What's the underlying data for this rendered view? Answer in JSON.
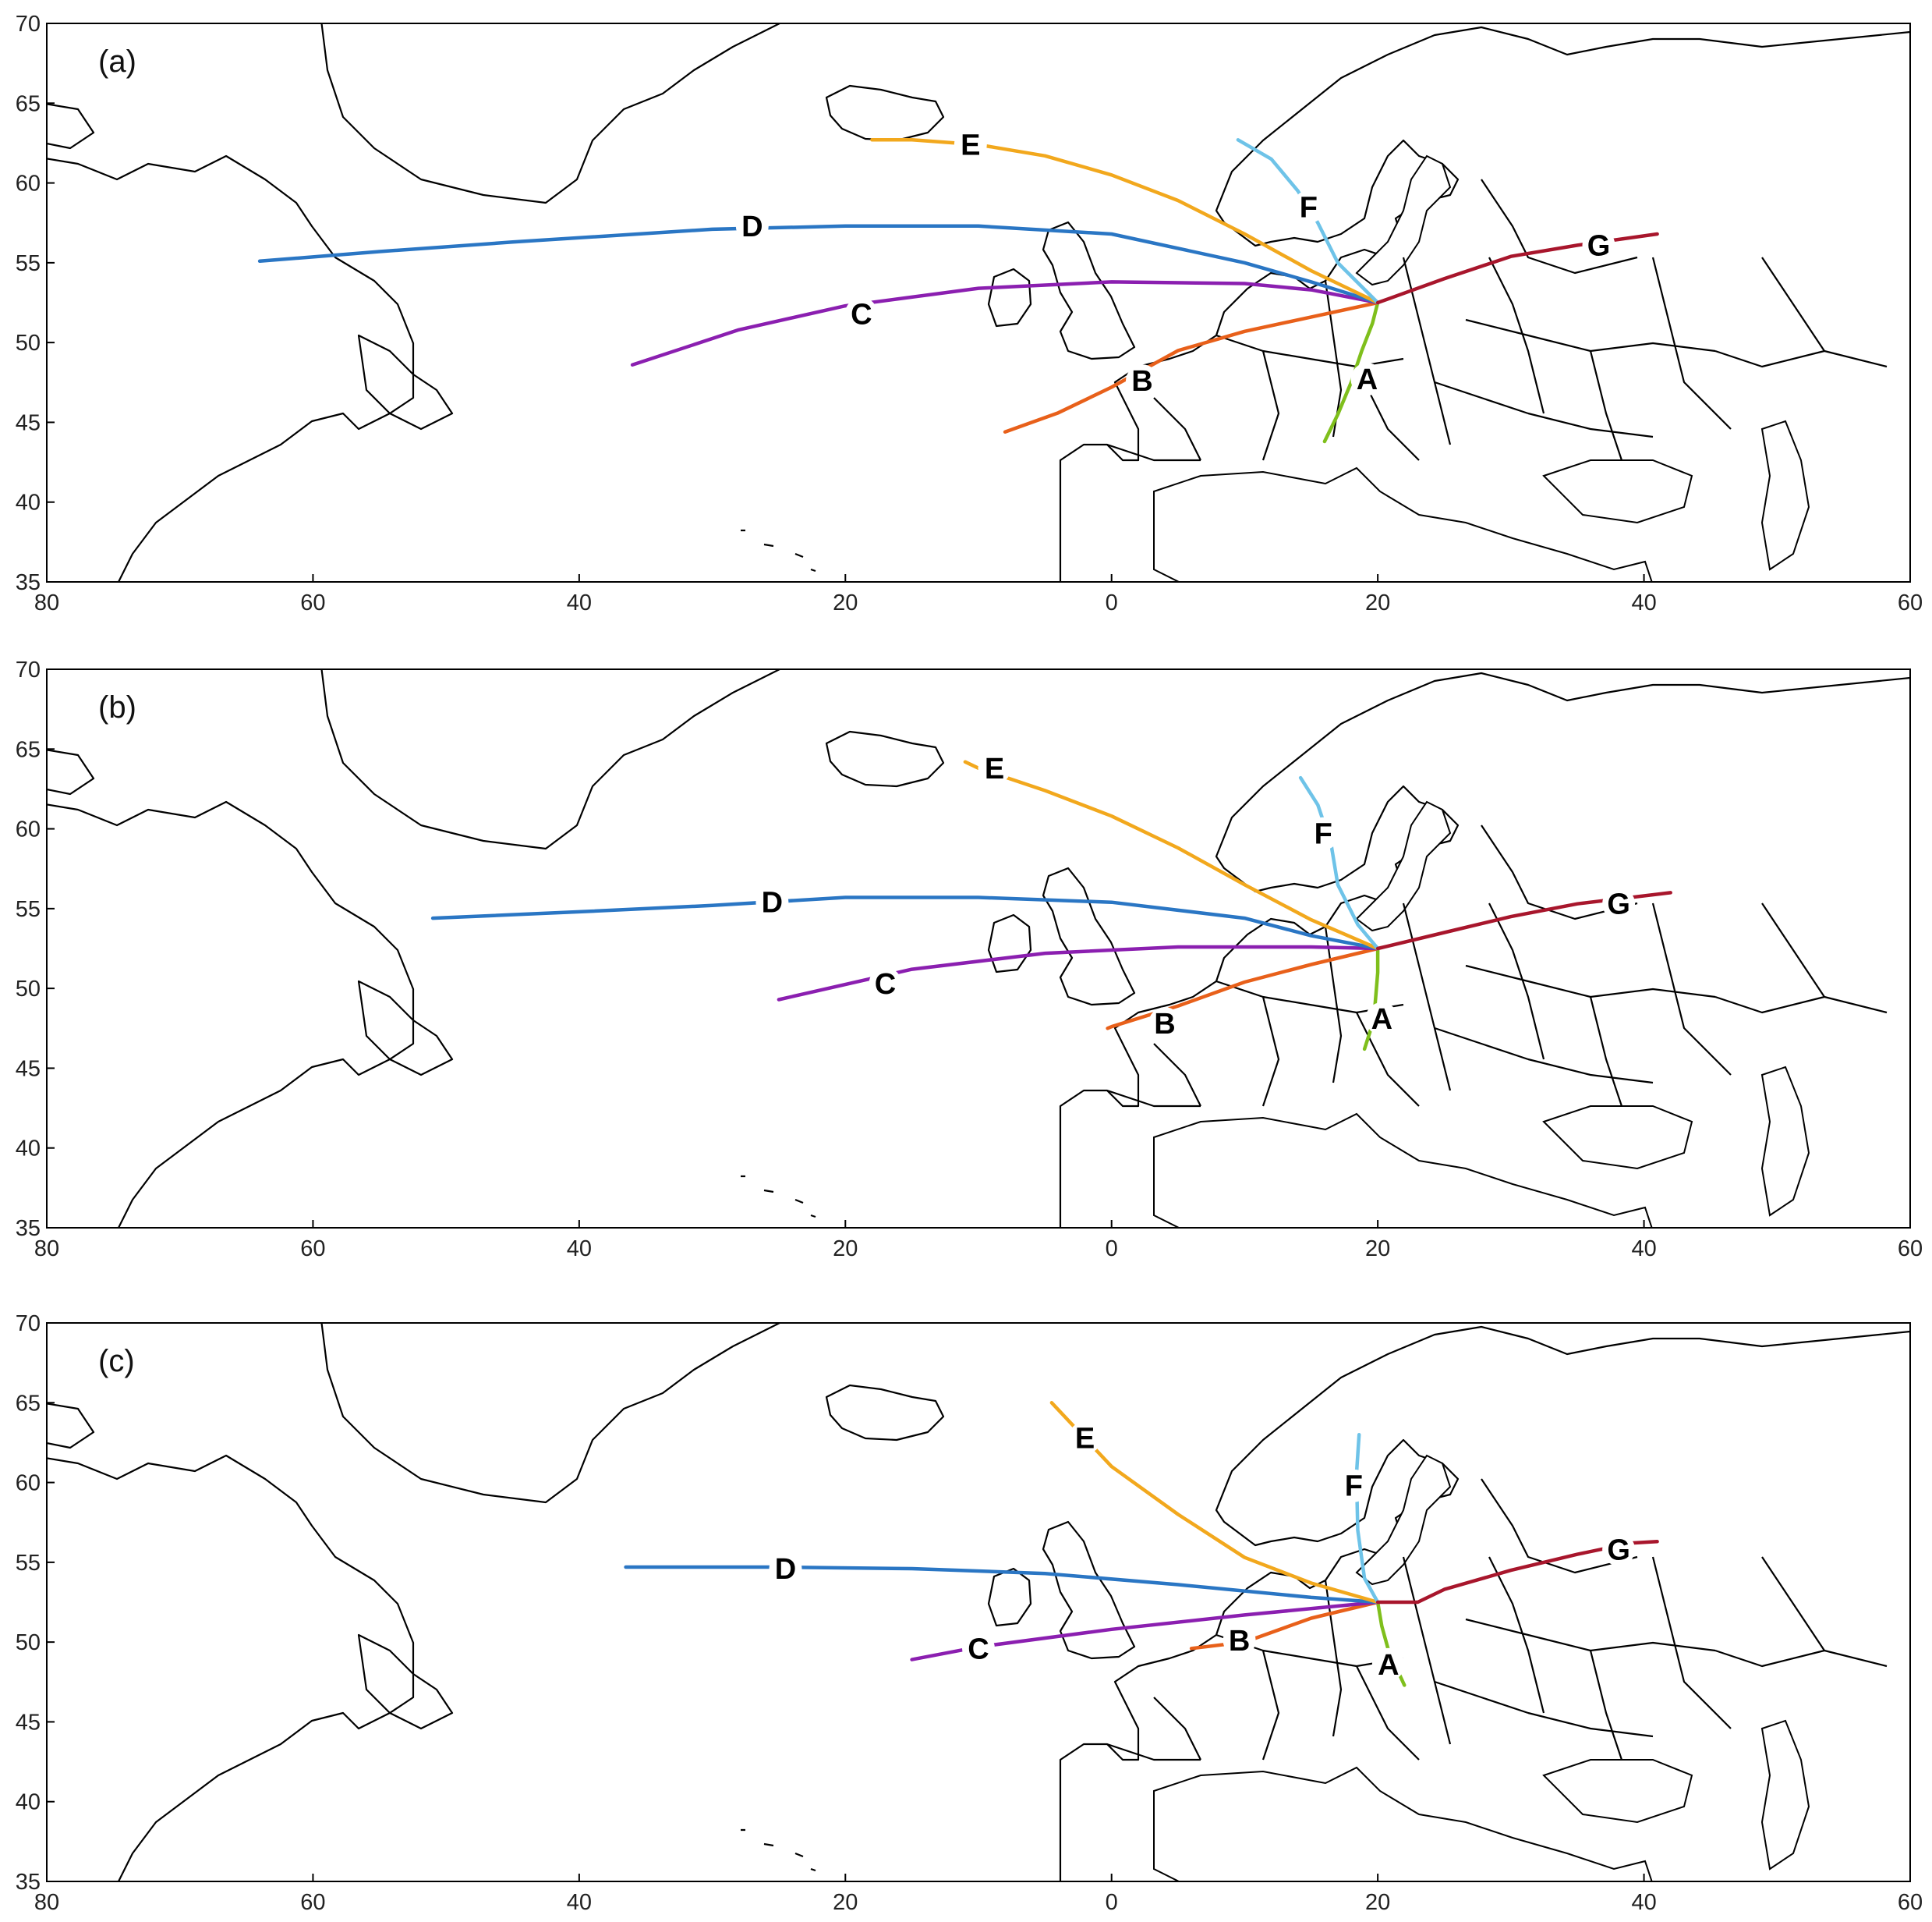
{
  "figure": {
    "panels": [
      {
        "label": "(a)",
        "tracks": {
          "A": [
            [
              20,
              52.5
            ],
            [
              19.6,
              51.2
            ],
            [
              18.8,
              49.5
            ],
            [
              18,
              47.5
            ],
            [
              17,
              45.5
            ],
            [
              16,
              43.8
            ]
          ],
          "B": [
            [
              20,
              52.5
            ],
            [
              15,
              51.6
            ],
            [
              10,
              50.7
            ],
            [
              5,
              49.5
            ],
            [
              0,
              47.2
            ],
            [
              -4,
              45.6
            ],
            [
              -8,
              44.4
            ]
          ],
          "C": [
            [
              20,
              52.5
            ],
            [
              15,
              53.3
            ],
            [
              10,
              53.7
            ],
            [
              0,
              53.8
            ],
            [
              -10,
              53.4
            ],
            [
              -20,
              52.3
            ],
            [
              -28,
              50.8
            ],
            [
              -36,
              48.6
            ]
          ],
          "D": [
            [
              20,
              52.5
            ],
            [
              15,
              53.8
            ],
            [
              10,
              55
            ],
            [
              0,
              56.8
            ],
            [
              -10,
              57.3
            ],
            [
              -20,
              57.3
            ],
            [
              -30,
              57.1
            ],
            [
              -45,
              56.3
            ],
            [
              -55,
              55.7
            ],
            [
              -64,
              55.1
            ]
          ],
          "E": [
            [
              20,
              52.5
            ],
            [
              15,
              54.5
            ],
            [
              10,
              56.8
            ],
            [
              5,
              58.9
            ],
            [
              0,
              60.5
            ],
            [
              -5,
              61.7
            ],
            [
              -10,
              62.4
            ],
            [
              -15,
              62.7
            ],
            [
              -18,
              62.7
            ]
          ],
          "F": [
            [
              20,
              52.5
            ],
            [
              17,
              55
            ],
            [
              15.5,
              57.5
            ],
            [
              14,
              59.5
            ],
            [
              12,
              61.5
            ],
            [
              9.5,
              62.7
            ]
          ],
          "G": [
            [
              20,
              52.5
            ],
            [
              25,
              54
            ],
            [
              30,
              55.4
            ],
            [
              35,
              56.1
            ],
            [
              41,
              56.8
            ]
          ]
        },
        "track_labels": {
          "A": [
            19.2,
            47.7
          ],
          "B": [
            2.3,
            47.6
          ],
          "C": [
            -18.8,
            51.8
          ],
          "D": [
            -27,
            57.3
          ],
          "E": [
            -10.6,
            62.4
          ],
          "F": [
            14.8,
            58.5
          ],
          "G": [
            36.6,
            56.1
          ]
        }
      },
      {
        "label": "(b)",
        "tracks": {
          "A": [
            [
              20,
              52.5
            ],
            [
              20,
              51
            ],
            [
              19.8,
              49
            ],
            [
              19.5,
              47.5
            ],
            [
              19,
              46.2
            ]
          ],
          "B": [
            [
              20,
              52.5
            ],
            [
              15,
              51.5
            ],
            [
              10,
              50.4
            ],
            [
              5,
              48.9
            ],
            [
              0,
              47.6
            ],
            [
              -0.3,
              47.5
            ]
          ],
          "C": [
            [
              20,
              52.5
            ],
            [
              15,
              52.6
            ],
            [
              5,
              52.6
            ],
            [
              -5,
              52.2
            ],
            [
              -15,
              51.2
            ],
            [
              -25,
              49.3
            ]
          ],
          "D": [
            [
              20,
              52.5
            ],
            [
              15,
              53.3
            ],
            [
              10,
              54.4
            ],
            [
              0,
              55.4
            ],
            [
              -10,
              55.7
            ],
            [
              -20,
              55.7
            ],
            [
              -30,
              55.2
            ],
            [
              -40,
              54.8
            ],
            [
              -51,
              54.4
            ]
          ],
          "E": [
            [
              20,
              52.5
            ],
            [
              15,
              54.3
            ],
            [
              10,
              56.5
            ],
            [
              5,
              58.8
            ],
            [
              0,
              60.8
            ],
            [
              -5,
              62.4
            ],
            [
              -10,
              63.8
            ],
            [
              -11,
              64.2
            ]
          ],
          "F": [
            [
              20,
              52.5
            ],
            [
              18.5,
              54
            ],
            [
              17,
              56.5
            ],
            [
              16.5,
              59
            ],
            [
              15.5,
              61.5
            ],
            [
              14.2,
              63.2
            ]
          ],
          "G": [
            [
              20,
              52.5
            ],
            [
              25,
              53.5
            ],
            [
              30,
              54.5
            ],
            [
              35,
              55.3
            ],
            [
              42,
              56
            ]
          ]
        },
        "track_labels": {
          "A": [
            20.3,
            48.1
          ],
          "B": [
            4,
            47.8
          ],
          "C": [
            -17,
            50.3
          ],
          "D": [
            -25.5,
            55.4
          ],
          "E": [
            -8.8,
            63.8
          ],
          "F": [
            15.9,
            59.7
          ],
          "G": [
            38.1,
            55.3
          ]
        }
      },
      {
        "label": "(c)",
        "tracks": {
          "A": [
            [
              20,
              52.5
            ],
            [
              20.3,
              51
            ],
            [
              20.8,
              49.5
            ],
            [
              21.5,
              48.2
            ],
            [
              22,
              47.3
            ]
          ],
          "B": [
            [
              20,
              52.5
            ],
            [
              15,
              51.5
            ],
            [
              10,
              50
            ],
            [
              6,
              49.6
            ]
          ],
          "C": [
            [
              20,
              52.5
            ],
            [
              10,
              51.7
            ],
            [
              0,
              50.8
            ],
            [
              -10,
              49.7
            ],
            [
              -15,
              48.9
            ]
          ],
          "D": [
            [
              20,
              52.5
            ],
            [
              15,
              52.8
            ],
            [
              5,
              53.6
            ],
            [
              -5,
              54.3
            ],
            [
              -15,
              54.6
            ],
            [
              -25,
              54.7
            ],
            [
              -36.5,
              54.7
            ]
          ],
          "E": [
            [
              20,
              52.5
            ],
            [
              15,
              53.7
            ],
            [
              10,
              55.3
            ],
            [
              5,
              58
            ],
            [
              0,
              61
            ],
            [
              -4.5,
              65
            ]
          ],
          "F": [
            [
              20,
              52.5
            ],
            [
              19,
              54
            ],
            [
              18.5,
              57
            ],
            [
              18.4,
              60.5
            ],
            [
              18.6,
              63
            ]
          ],
          "G": [
            [
              20,
              52.5
            ],
            [
              23,
              52.5
            ],
            [
              25,
              53.3
            ],
            [
              30,
              54.5
            ],
            [
              35,
              55.5
            ],
            [
              39,
              56.2
            ],
            [
              41,
              56.3
            ]
          ]
        },
        "track_labels": {
          "A": [
            20.8,
            48.6
          ],
          "B": [
            9.6,
            50.1
          ],
          "C": [
            -10,
            49.6
          ],
          "D": [
            -24.5,
            54.6
          ],
          "E": [
            -2,
            62.8
          ],
          "F": [
            18.2,
            59.8
          ],
          "G": [
            38.1,
            55.8
          ]
        }
      }
    ],
    "x_ticks": [
      "80",
      "60",
      "40",
      "20",
      "0",
      "20",
      "40",
      "60"
    ],
    "y_ticks": [
      "70",
      "65",
      "60",
      "55",
      "50",
      "45",
      "40",
      "35"
    ],
    "extent": {
      "lon": [
        -80,
        60
      ],
      "lat": [
        35,
        70
      ]
    },
    "track_colors": {
      "A": "#7fbf1c",
      "B": "#e8601a",
      "C": "#8b1fb0",
      "D": "#2a76c4",
      "E": "#f2a81d",
      "F": "#6ec3e8",
      "G": "#a8162c"
    }
  }
}
